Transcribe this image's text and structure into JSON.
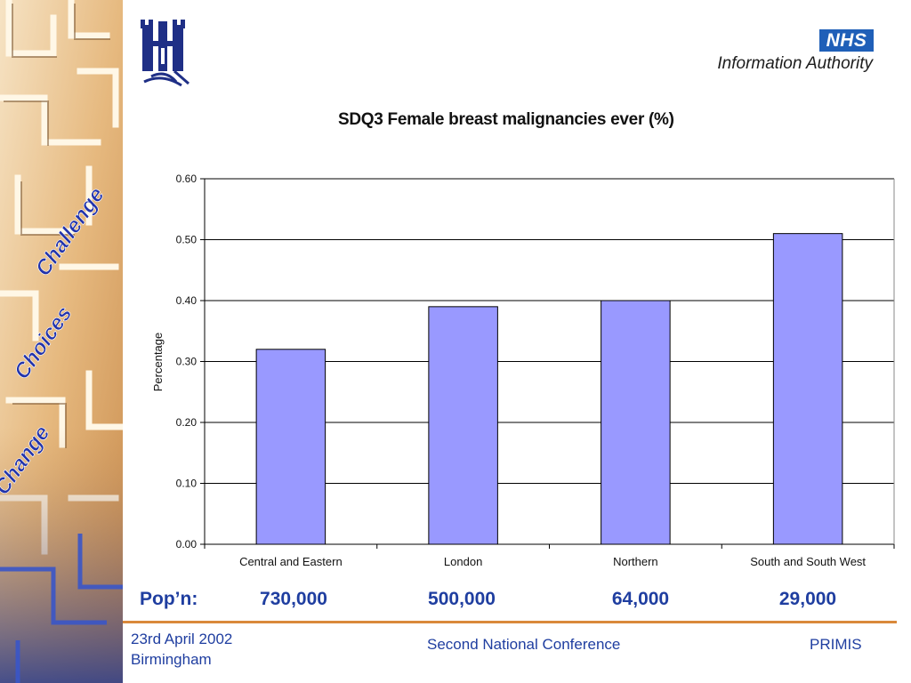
{
  "header": {
    "nhs_badge": "NHS",
    "nhs_subtitle": "Information Authority",
    "maze_words": [
      "Challenge",
      "Choices",
      "Change"
    ]
  },
  "chart_data": {
    "type": "bar",
    "title": "SDQ3 Female breast malignancies ever (%)",
    "xlabel": "",
    "ylabel": "Percentage",
    "categories": [
      "Central and Eastern",
      "London",
      "Northern",
      "South and South West"
    ],
    "values": [
      0.32,
      0.39,
      0.4,
      0.51
    ],
    "ylim": [
      0,
      0.6
    ],
    "yticks": [
      "0.00",
      "0.10",
      "0.20",
      "0.30",
      "0.40",
      "0.50",
      "0.60"
    ],
    "grid": true,
    "bar_color": "#9999ff"
  },
  "population": {
    "label": "Pop’n:",
    "values": [
      "730,000",
      "500,000",
      "64,000",
      "29,000"
    ]
  },
  "footer": {
    "date": "23rd April 2002",
    "place": "Birmingham",
    "conference": "Second National Conference",
    "org": "PRIMIS"
  }
}
